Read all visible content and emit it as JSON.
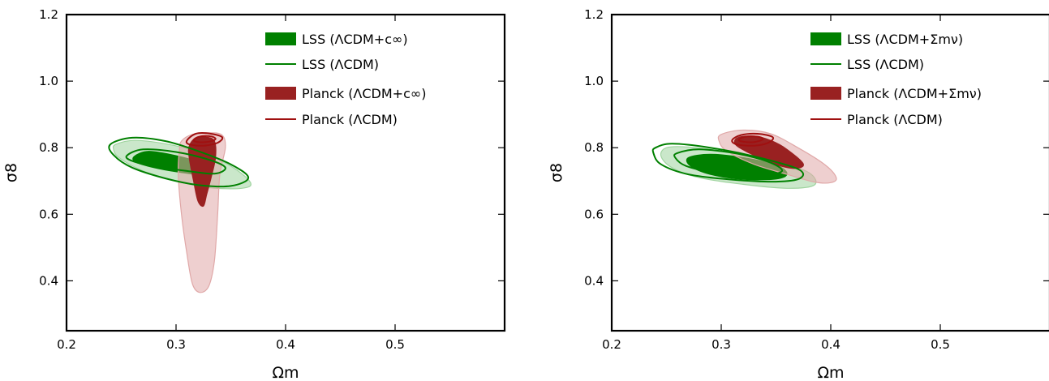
{
  "colors": {
    "lss_filled": "#008000",
    "lss_light": "#9fd49f",
    "planck_filled": "#992121",
    "planck_light": "#e0a8a8",
    "planck_line": "#a01010"
  },
  "chart_data": [
    {
      "type": "contour",
      "xlabel": "Ωm",
      "ylabel": "σ8",
      "xlim": [
        0.2,
        0.6
      ],
      "ylim": [
        0.25,
        1.2
      ],
      "xticks": [
        0.2,
        0.3,
        0.4,
        0.5
      ],
      "yticks": [
        0.4,
        0.6,
        0.8,
        1.0,
        1.2
      ],
      "xtick_labels": [
        "0.2",
        "0.3",
        "0.4",
        "0.5"
      ],
      "ytick_labels": [
        "0.4",
        "0.6",
        "0.8",
        "1.0",
        "1.2"
      ],
      "legend_position": "top-right",
      "legend": [
        {
          "label": "LSS (ΛCDM+c∞)",
          "style": "filled",
          "color": "#008000"
        },
        {
          "label": "LSS (ΛCDM)",
          "style": "line",
          "color": "#008000"
        },
        {
          "label": "Planck (ΛCDM+c∞)",
          "style": "filled",
          "color": "#992121"
        },
        {
          "label": "Planck (ΛCDM)",
          "style": "line",
          "color": "#a01010"
        }
      ],
      "contours": [
        {
          "name": "lss-extended-95",
          "style": "fill",
          "color": "#9fd49f",
          "points": [
            [
              0.245,
              0.81
            ],
            [
              0.262,
              0.822
            ],
            [
              0.29,
              0.812
            ],
            [
              0.32,
              0.788
            ],
            [
              0.35,
              0.745
            ],
            [
              0.368,
              0.695
            ],
            [
              0.36,
              0.678
            ],
            [
              0.33,
              0.68
            ],
            [
              0.3,
              0.7
            ],
            [
              0.27,
              0.73
            ],
            [
              0.248,
              0.77
            ],
            [
              0.243,
              0.795
            ]
          ]
        },
        {
          "name": "lss-extended-68",
          "style": "fill",
          "color": "#008000",
          "points": [
            [
              0.262,
              0.774
            ],
            [
              0.275,
              0.789
            ],
            [
              0.3,
              0.776
            ],
            [
              0.322,
              0.755
            ],
            [
              0.33,
              0.735
            ],
            [
              0.322,
              0.72
            ],
            [
              0.3,
              0.728
            ],
            [
              0.28,
              0.74
            ],
            [
              0.263,
              0.757
            ]
          ]
        },
        {
          "name": "planck-extended-95",
          "style": "fill",
          "color": "#e0a8a8",
          "points": [
            [
              0.305,
              0.82
            ],
            [
              0.315,
              0.84
            ],
            [
              0.33,
              0.845
            ],
            [
              0.342,
              0.838
            ],
            [
              0.345,
              0.8
            ],
            [
              0.34,
              0.72
            ],
            [
              0.338,
              0.6
            ],
            [
              0.335,
              0.46
            ],
            [
              0.33,
              0.385
            ],
            [
              0.322,
              0.365
            ],
            [
              0.315,
              0.39
            ],
            [
              0.31,
              0.48
            ],
            [
              0.305,
              0.6
            ],
            [
              0.302,
              0.72
            ],
            [
              0.303,
              0.79
            ]
          ]
        },
        {
          "name": "planck-extended-68",
          "style": "fill",
          "color": "#992121",
          "points": [
            [
              0.312,
              0.805
            ],
            [
              0.318,
              0.83
            ],
            [
              0.327,
              0.832
            ],
            [
              0.335,
              0.82
            ],
            [
              0.336,
              0.77
            ],
            [
              0.332,
              0.71
            ],
            [
              0.328,
              0.66
            ],
            [
              0.325,
              0.625
            ],
            [
              0.32,
              0.64
            ],
            [
              0.316,
              0.7
            ],
            [
              0.312,
              0.77
            ]
          ]
        },
        {
          "name": "lss-lcdm-outer",
          "style": "line",
          "color": "#008000",
          "points": [
            [
              0.24,
              0.81
            ],
            [
              0.26,
              0.83
            ],
            [
              0.29,
              0.82
            ],
            [
              0.32,
              0.79
            ],
            [
              0.35,
              0.75
            ],
            [
              0.366,
              0.71
            ],
            [
              0.35,
              0.685
            ],
            [
              0.32,
              0.688
            ],
            [
              0.29,
              0.708
            ],
            [
              0.26,
              0.74
            ],
            [
              0.243,
              0.778
            ]
          ]
        },
        {
          "name": "lss-lcdm-inner",
          "style": "line",
          "color": "#008000",
          "points": [
            [
              0.255,
              0.776
            ],
            [
              0.27,
              0.795
            ],
            [
              0.3,
              0.787
            ],
            [
              0.33,
              0.764
            ],
            [
              0.345,
              0.74
            ],
            [
              0.335,
              0.722
            ],
            [
              0.31,
              0.73
            ],
            [
              0.28,
              0.744
            ],
            [
              0.26,
              0.76
            ]
          ]
        },
        {
          "name": "planck-lcdm-outer",
          "style": "line",
          "color": "#a01010",
          "points": [
            [
              0.31,
              0.822
            ],
            [
              0.318,
              0.842
            ],
            [
              0.33,
              0.843
            ],
            [
              0.342,
              0.832
            ],
            [
              0.338,
              0.815
            ],
            [
              0.325,
              0.806
            ],
            [
              0.312,
              0.81
            ]
          ]
        },
        {
          "name": "planck-lcdm-inner",
          "style": "line",
          "color": "#a01010",
          "points": [
            [
              0.316,
              0.823
            ],
            [
              0.322,
              0.834
            ],
            [
              0.332,
              0.834
            ],
            [
              0.336,
              0.826
            ],
            [
              0.33,
              0.818
            ],
            [
              0.32,
              0.817
            ]
          ]
        }
      ]
    },
    {
      "type": "contour",
      "xlabel": "Ωm",
      "ylabel": "σ8",
      "xlim": [
        0.2,
        0.6
      ],
      "ylim": [
        0.25,
        1.2
      ],
      "xticks": [
        0.2,
        0.3,
        0.4,
        0.5
      ],
      "yticks": [
        0.4,
        0.6,
        0.8,
        1.0,
        1.2
      ],
      "xtick_labels": [
        "0.2",
        "0.3",
        "0.4",
        "0.5"
      ],
      "ytick_labels": [
        "0.4",
        "0.6",
        "0.8",
        "1.0",
        "1.2"
      ],
      "legend_position": "top-right",
      "legend": [
        {
          "label": "LSS (ΛCDM+Σmν)",
          "style": "filled",
          "color": "#008000"
        },
        {
          "label": "LSS (ΛCDM)",
          "style": "line",
          "color": "#008000"
        },
        {
          "label": "Planck (ΛCDM+Σmν)",
          "style": "filled",
          "color": "#992121"
        },
        {
          "label": "Planck (ΛCDM)",
          "style": "line",
          "color": "#a01010"
        }
      ],
      "contours": [
        {
          "name": "lss-extended-95",
          "style": "fill",
          "color": "#9fd49f",
          "points": [
            [
              0.25,
              0.8
            ],
            [
              0.27,
              0.802
            ],
            [
              0.31,
              0.785
            ],
            [
              0.35,
              0.76
            ],
            [
              0.38,
              0.725
            ],
            [
              0.385,
              0.688
            ],
            [
              0.36,
              0.678
            ],
            [
              0.32,
              0.69
            ],
            [
              0.28,
              0.71
            ],
            [
              0.255,
              0.74
            ],
            [
              0.245,
              0.775
            ]
          ]
        },
        {
          "name": "lss-extended-68",
          "style": "fill",
          "color": "#008000",
          "points": [
            [
              0.27,
              0.77
            ],
            [
              0.29,
              0.78
            ],
            [
              0.32,
              0.77
            ],
            [
              0.35,
              0.748
            ],
            [
              0.36,
              0.722
            ],
            [
              0.35,
              0.706
            ],
            [
              0.32,
              0.705
            ],
            [
              0.29,
              0.72
            ],
            [
              0.272,
              0.745
            ]
          ]
        },
        {
          "name": "planck-extended-95",
          "style": "fill",
          "color": "#e0a8a8",
          "points": [
            [
              0.3,
              0.84
            ],
            [
              0.32,
              0.853
            ],
            [
              0.345,
              0.842
            ],
            [
              0.37,
              0.8
            ],
            [
              0.395,
              0.748
            ],
            [
              0.405,
              0.71
            ],
            [
              0.4,
              0.695
            ],
            [
              0.385,
              0.697
            ],
            [
              0.36,
              0.72
            ],
            [
              0.33,
              0.75
            ],
            [
              0.305,
              0.79
            ],
            [
              0.298,
              0.82
            ]
          ]
        },
        {
          "name": "planck-extended-68",
          "style": "fill",
          "color": "#992121",
          "points": [
            [
              0.315,
              0.83
            ],
            [
              0.33,
              0.835
            ],
            [
              0.345,
              0.822
            ],
            [
              0.36,
              0.795
            ],
            [
              0.375,
              0.75
            ],
            [
              0.365,
              0.738
            ],
            [
              0.345,
              0.755
            ],
            [
              0.325,
              0.785
            ],
            [
              0.313,
              0.81
            ]
          ]
        },
        {
          "name": "lss-lcdm-outer",
          "style": "line",
          "color": "#008000",
          "points": [
            [
              0.24,
              0.8
            ],
            [
              0.255,
              0.812
            ],
            [
              0.29,
              0.8
            ],
            [
              0.33,
              0.774
            ],
            [
              0.37,
              0.736
            ],
            [
              0.372,
              0.708
            ],
            [
              0.35,
              0.698
            ],
            [
              0.31,
              0.704
            ],
            [
              0.27,
              0.72
            ],
            [
              0.245,
              0.75
            ],
            [
              0.238,
              0.785
            ]
          ]
        },
        {
          "name": "lss-lcdm-inner",
          "style": "line",
          "color": "#008000",
          "points": [
            [
              0.26,
              0.784
            ],
            [
              0.28,
              0.795
            ],
            [
              0.315,
              0.782
            ],
            [
              0.345,
              0.755
            ],
            [
              0.355,
              0.728
            ],
            [
              0.33,
              0.716
            ],
            [
              0.295,
              0.725
            ],
            [
              0.268,
              0.745
            ],
            [
              0.258,
              0.77
            ]
          ]
        },
        {
          "name": "planck-lcdm-outer",
          "style": "line",
          "color": "#a01010",
          "points": [
            [
              0.31,
              0.823
            ],
            [
              0.318,
              0.838
            ],
            [
              0.333,
              0.842
            ],
            [
              0.347,
              0.832
            ],
            [
              0.343,
              0.815
            ],
            [
              0.33,
              0.806
            ],
            [
              0.314,
              0.81
            ]
          ]
        },
        {
          "name": "planck-lcdm-inner",
          "style": "line",
          "color": "#a01010",
          "points": [
            [
              0.316,
              0.824
            ],
            [
              0.322,
              0.833
            ],
            [
              0.334,
              0.833
            ],
            [
              0.338,
              0.825
            ],
            [
              0.33,
              0.817
            ],
            [
              0.32,
              0.818
            ]
          ]
        }
      ]
    }
  ]
}
